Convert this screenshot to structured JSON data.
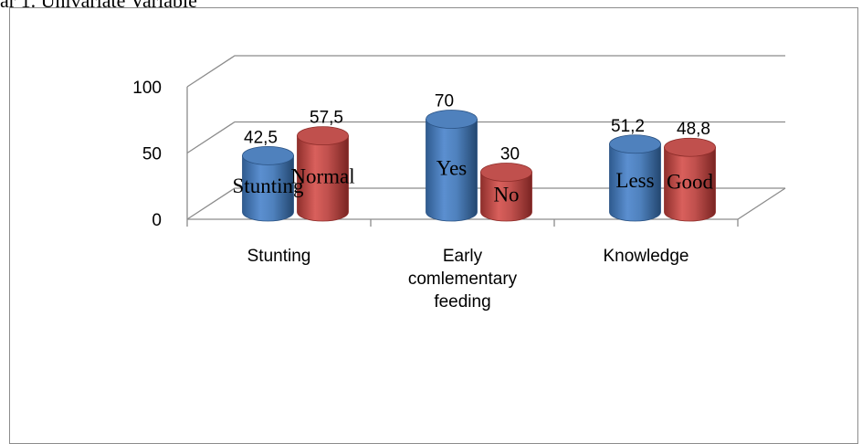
{
  "caption": "ar 1. Univariate Variable",
  "chart_data": {
    "type": "bar",
    "style": "3d-cylinder",
    "categories": [
      [
        "Stunting"
      ],
      [
        "Early",
        "comlementary",
        "feeding"
      ],
      [
        "Knowledge"
      ]
    ],
    "bars": [
      {
        "value": 42.5,
        "value_label": "42,5",
        "in_label": "Stunting",
        "color": "#4f81bd"
      },
      {
        "value": 57.5,
        "value_label": "57,5",
        "in_label": "Normal",
        "color": "#c0504d"
      },
      {
        "value": 70,
        "value_label": "70",
        "in_label": "Yes",
        "color": "#4f81bd"
      },
      {
        "value": 30,
        "value_label": "30",
        "in_label": "No",
        "color": "#c0504d"
      },
      {
        "value": 51.2,
        "value_label": "51,2",
        "in_label": "Less",
        "color": "#4f81bd"
      },
      {
        "value": 48.8,
        "value_label": "48,8",
        "in_label": "Good",
        "color": "#c0504d"
      }
    ],
    "ylim": [
      0,
      100
    ],
    "yticks": [
      "0",
      "50",
      "100"
    ],
    "grid": true,
    "legend": "none"
  }
}
